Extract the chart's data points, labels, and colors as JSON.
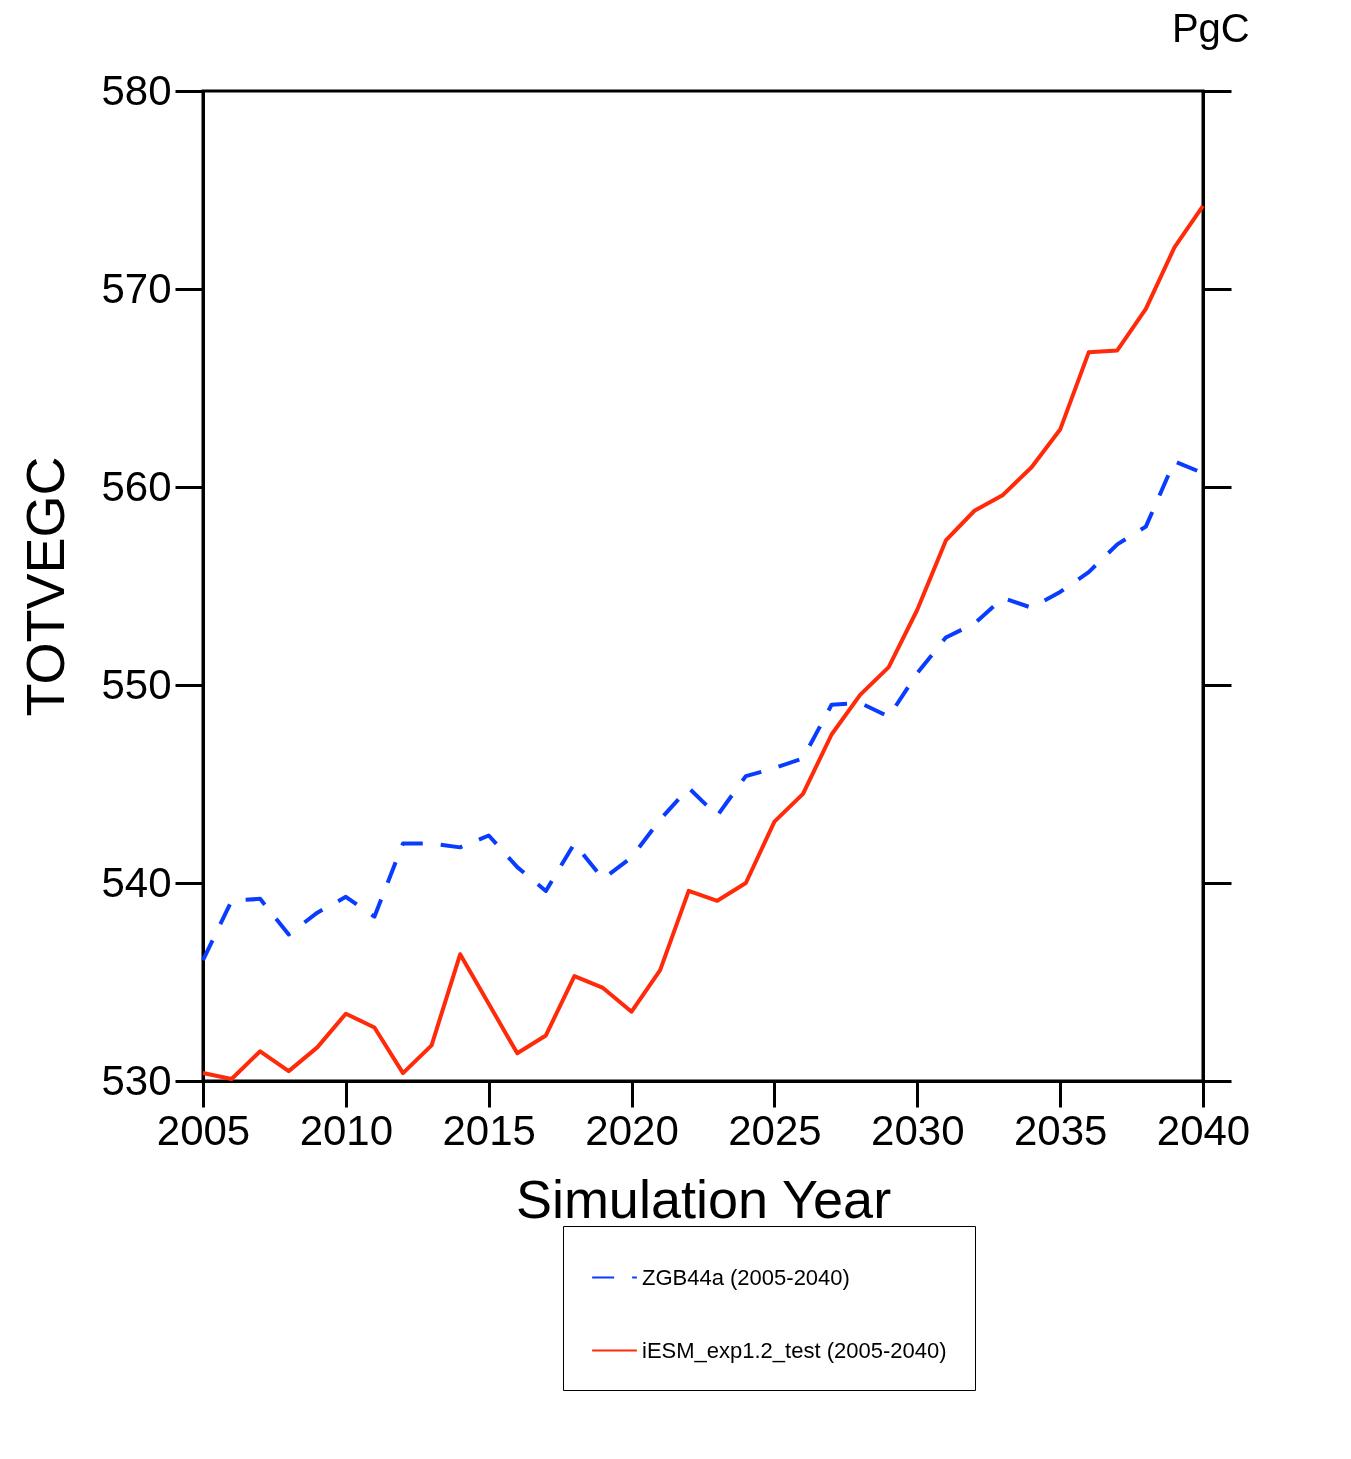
{
  "chart_data": {
    "type": "line",
    "title": "PgC",
    "xlabel": "Simulation Year",
    "ylabel": "TOTVEGC",
    "x": [
      2005,
      2006,
      2007,
      2008,
      2009,
      2010,
      2011,
      2012,
      2013,
      2014,
      2015,
      2016,
      2017,
      2018,
      2019,
      2020,
      2021,
      2022,
      2023,
      2024,
      2025,
      2026,
      2027,
      2028,
      2029,
      2030,
      2031,
      2032,
      2033,
      2034,
      2035,
      2036,
      2037,
      2038,
      2039,
      2040
    ],
    "series": [
      {
        "name": "ZGB44a (2005-2040)",
        "color": "#0a3cff",
        "line_style": "dashed",
        "values": [
          536.1,
          539.1,
          539.2,
          537.4,
          538.5,
          539.3,
          538.3,
          542.0,
          542.0,
          541.8,
          542.4,
          540.8,
          539.6,
          542.0,
          540.2,
          541.3,
          543.2,
          544.8,
          543.4,
          545.4,
          545.8,
          546.3,
          549.0,
          549.1,
          548.4,
          550.6,
          552.4,
          553.1,
          554.4,
          553.9,
          554.7,
          555.7,
          557.1,
          558.0,
          561.3,
          560.7
        ]
      },
      {
        "name": "iESM_exp1.2_test (2005-2040)",
        "color": "#ff2a0a",
        "line_style": "solid",
        "values": [
          530.4,
          530.1,
          531.5,
          530.5,
          531.7,
          533.4,
          532.7,
          530.4,
          531.8,
          536.4,
          533.9,
          531.4,
          532.3,
          535.3,
          534.7,
          533.5,
          535.6,
          539.6,
          539.1,
          540.0,
          543.1,
          544.5,
          547.5,
          549.5,
          550.9,
          553.8,
          557.3,
          558.8,
          559.6,
          561.0,
          562.9,
          566.8,
          566.9,
          569.0,
          572.1,
          574.2
        ]
      }
    ],
    "xlim": [
      2005,
      2040
    ],
    "xticks": [
      2005,
      2010,
      2015,
      2020,
      2025,
      2030,
      2035,
      2040
    ],
    "ylim": [
      530,
      580
    ],
    "yticks": [
      530,
      540,
      550,
      560,
      570,
      580
    ],
    "grid": false,
    "legend": "bottom",
    "marker": "none"
  }
}
